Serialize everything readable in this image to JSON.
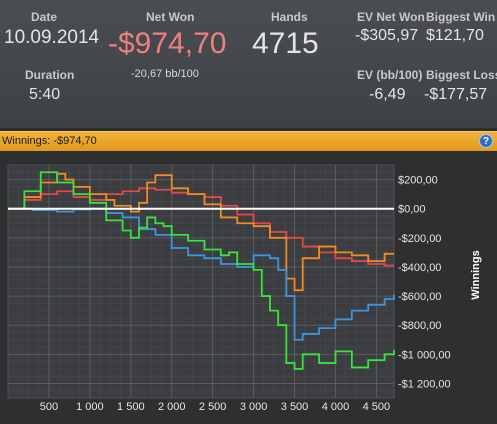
{
  "stats": {
    "date_label": "Date",
    "date_value": "10.09.2014",
    "duration_label": "Duration",
    "duration_value": "5:40",
    "net_won_label": "Net Won",
    "net_won_value": "-$974,70",
    "net_won_sub": "-20,67 bb/100",
    "hands_label": "Hands",
    "hands_value": "4715",
    "ev_net_won_label": "EV Net Won",
    "ev_net_won_value": "-$305,97",
    "biggest_win_label": "Biggest Win",
    "biggest_win_value": "$121,70",
    "ev_bb_label": "EV (bb/100)",
    "ev_bb_value": "-6,49",
    "biggest_loss_label": "Biggest Loss",
    "biggest_loss_value": "-$177,57"
  },
  "bar": {
    "title": "Winnings:",
    "value": "-$974,70",
    "help_icon": "?"
  },
  "colors": {
    "net_won": "#f07f7f",
    "bar": "#eda62a",
    "green": "#39e43a",
    "blue": "#3d94df",
    "orange": "#f08c22",
    "red": "#e04a4a"
  },
  "chart_data": {
    "type": "line",
    "xlim": [
      0,
      4715
    ],
    "ylim": [
      -1300,
      300
    ],
    "grid": true,
    "ylabel": "Winnings",
    "x_ticks": [
      500,
      1000,
      1500,
      2000,
      2500,
      3000,
      3500,
      4000,
      4500
    ],
    "x_tick_labels": [
      "500",
      "1 000",
      "1 500",
      "2 000",
      "2 500",
      "3 000",
      "3 500",
      "4 000",
      "4 500"
    ],
    "y_ticks": [
      200,
      0,
      -200,
      -400,
      -600,
      -800,
      -1000,
      -1200
    ],
    "y_tick_labels": [
      "$200,00",
      "$0,00",
      "-$200,00",
      "-$400,00",
      "-$600,00",
      "-$800,00",
      "-$1 000,00",
      "-$1 200,00"
    ],
    "series": [
      {
        "color": "#e04a4a",
        "x": [
          0,
          200,
          400,
          600,
          800,
          1000,
          1200,
          1400,
          1600,
          1800,
          2000,
          2200,
          2400,
          2600,
          2800,
          3000,
          3200,
          3400,
          3600,
          3800,
          4000,
          4200,
          4400,
          4600,
          4715
        ],
        "y": [
          0,
          60,
          100,
          120,
          80,
          60,
          100,
          120,
          140,
          130,
          110,
          100,
          80,
          20,
          -40,
          -100,
          -160,
          -200,
          -260,
          -300,
          -340,
          -360,
          -380,
          -390,
          -390
        ]
      },
      {
        "color": "#f08c22",
        "x": [
          0,
          200,
          400,
          600,
          700,
          800,
          1000,
          1200,
          1300,
          1500,
          1600,
          1700,
          1800,
          2000,
          2200,
          2400,
          2600,
          2800,
          3000,
          3200,
          3400,
          3500,
          3600,
          3800,
          4000,
          4200,
          4400,
          4600,
          4715
        ],
        "y": [
          0,
          80,
          180,
          240,
          200,
          150,
          100,
          60,
          20,
          -20,
          40,
          180,
          230,
          140,
          100,
          30,
          -60,
          -100,
          -120,
          -200,
          -480,
          -560,
          -340,
          -260,
          -300,
          -320,
          -360,
          -310,
          -310
        ]
      },
      {
        "color": "#3d94df",
        "x": [
          0,
          300,
          600,
          800,
          1000,
          1200,
          1400,
          1600,
          1800,
          2000,
          2200,
          2400,
          2600,
          2800,
          3000,
          3200,
          3300,
          3400,
          3500,
          3600,
          3800,
          4000,
          4200,
          4400,
          4600,
          4715
        ],
        "y": [
          0,
          -10,
          -20,
          -5,
          0,
          -30,
          -60,
          -140,
          -180,
          -270,
          -320,
          -340,
          -380,
          -400,
          -320,
          -340,
          -420,
          -600,
          -900,
          -860,
          -820,
          -760,
          -700,
          -660,
          -620,
          -590
        ]
      },
      {
        "color": "#39e43a",
        "x": [
          0,
          200,
          400,
          600,
          800,
          1000,
          1200,
          1400,
          1500,
          1600,
          1700,
          1800,
          1900,
          2000,
          2200,
          2400,
          2600,
          2700,
          2800,
          3000,
          3100,
          3200,
          3300,
          3400,
          3500,
          3600,
          3800,
          4000,
          4200,
          4400,
          4600,
          4715
        ],
        "y": [
          0,
          120,
          250,
          180,
          100,
          40,
          -80,
          -150,
          -200,
          -130,
          -60,
          -100,
          -120,
          -180,
          -220,
          -280,
          -320,
          -300,
          -380,
          -420,
          -600,
          -700,
          -800,
          -1060,
          -1100,
          -1000,
          -1060,
          -980,
          -1090,
          -1040,
          -1000,
          -970
        ]
      }
    ],
    "baseline_y": 0
  }
}
